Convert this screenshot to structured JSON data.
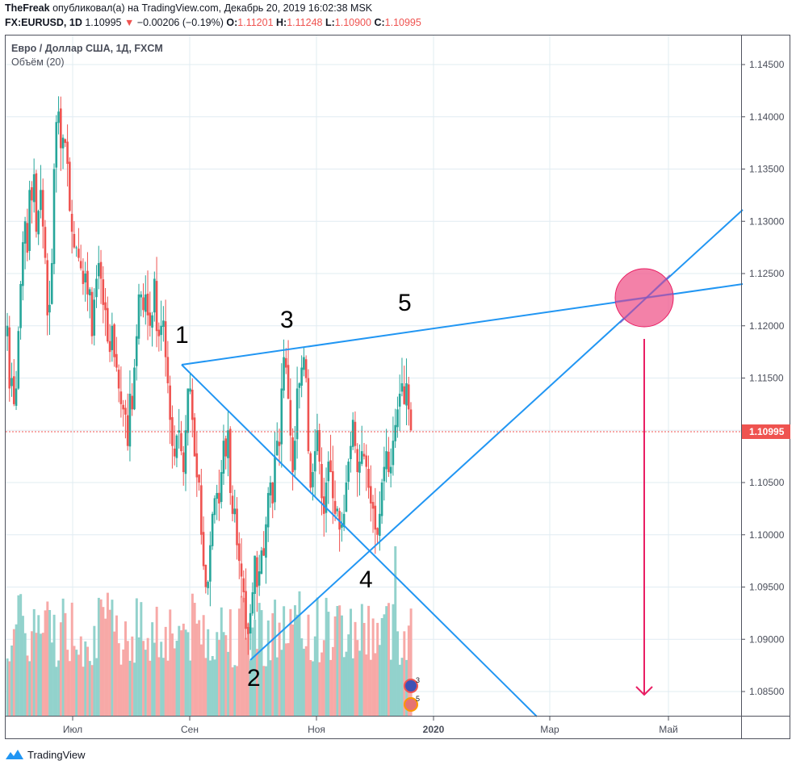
{
  "header": {
    "author": "TheFreak",
    "published_text": "опубликовал(а) на TradingView.com, Декабрь 20, 2019 16:02:38 MSK",
    "symbol": "FX:EURUSD, 1D",
    "last_price": "1.10995",
    "change_arrow": "▼",
    "change": "−0.00206 (−0.19%)",
    "o_label": "O:",
    "o_value": "1.11201",
    "h_label": "H:",
    "h_value": "1.11248",
    "l_label": "L:",
    "l_value": "1.10900",
    "c_label": "C:",
    "c_value": "1.10995"
  },
  "legend": {
    "title": "Евро / Доллар США, 1Д, FXCM",
    "volume": "Объём (20)"
  },
  "footer": {
    "brand": "TradingView"
  },
  "colors": {
    "up": "#26a69a",
    "down": "#ef5350",
    "vol_up": "#92d2cc",
    "vol_down": "#f7a9a7",
    "trendline": "#2196f3",
    "circle_fill": "#f06292",
    "circle_stroke": "#e91e63",
    "arrow": "#e91e63",
    "grid": "#e1ecf2",
    "price_line": "#ef5350"
  },
  "chart_data": {
    "type": "candlestick",
    "title": "Евро / Доллар США, 1Д, FXCM",
    "symbol": "FX:EURUSD",
    "timeframe": "1D",
    "y_ticks": [
      "1.14500",
      "1.14000",
      "1.13500",
      "1.13000",
      "1.12500",
      "1.12000",
      "1.11500",
      "1.11000",
      "1.10500",
      "1.10000",
      "1.09500",
      "1.09000",
      "1.08500"
    ],
    "x_ticks": [
      "Июл",
      "Сен",
      "Ноя",
      "2020",
      "Мар",
      "Май"
    ],
    "current_price": "1.10995",
    "ylim": [
      1.0835,
      1.1475
    ],
    "volume_indicator": "Объём (20)",
    "closes": [
      1.12,
      1.114,
      1.115,
      1.1125,
      1.114,
      1.1195,
      1.124,
      1.128,
      1.13,
      1.127,
      1.133,
      1.132,
      1.1345,
      1.129,
      1.131,
      1.133,
      1.1295,
      1.1265,
      1.121,
      1.122,
      1.126,
      1.135,
      1.1395,
      1.1405,
      1.137,
      1.138,
      1.1375,
      1.1355,
      1.131,
      1.129,
      1.1275,
      1.1275,
      1.1265,
      1.1255,
      1.124,
      1.125,
      1.123,
      1.1235,
      1.119,
      1.1225,
      1.1245,
      1.126,
      1.1245,
      1.122,
      1.1215,
      1.1185,
      1.1175,
      1.12,
      1.117,
      1.116,
      1.114,
      1.1125,
      1.112,
      1.1115,
      1.1085,
      1.1135,
      1.112,
      1.116,
      1.119,
      1.123,
      1.123,
      1.1215,
      1.123,
      1.121,
      1.12,
      1.121,
      1.1245,
      1.1195,
      1.119,
      1.12,
      1.1205,
      1.117,
      1.1145,
      1.111,
      1.1085,
      1.1075,
      1.1095,
      1.11,
      1.108,
      1.106,
      1.11,
      1.114,
      1.114,
      1.111,
      1.1075,
      1.1055,
      1.105,
      1.1,
      1.097,
      1.095,
      1.0955,
      1.099,
      1.102,
      1.1035,
      1.104,
      1.103,
      1.106,
      1.109,
      1.1075,
      1.11,
      1.104,
      1.102,
      1.1025,
      1.099,
      1.0975,
      1.096,
      1.0945,
      1.091,
      1.0905,
      1.0925,
      1.0945,
      1.098,
      1.095,
      1.0965,
      1.0985,
      1.098,
      1.101,
      1.104,
      1.105,
      1.103,
      1.1075,
      1.109,
      1.1085,
      1.114,
      1.117,
      1.116,
      1.113,
      1.1095,
      1.106,
      1.109,
      1.114,
      1.1145,
      1.116,
      1.117,
      1.115,
      1.108,
      1.1045,
      1.106,
      1.108,
      1.11,
      1.107,
      1.1035,
      1.102,
      1.105,
      1.107,
      1.106,
      1.1035,
      1.102,
      1.1025,
      1.1005,
      1.101,
      1.102,
      1.105,
      1.107,
      1.1085,
      1.111,
      1.1085,
      1.106,
      1.107,
      1.108,
      1.1075,
      1.1065,
      1.1045,
      1.103,
      1.1025,
      1.1005,
      1.1,
      1.102,
      1.105,
      1.1065,
      1.108,
      1.106,
      1.1065,
      1.109,
      1.1105,
      1.112,
      1.1135,
      1.1145,
      1.1125,
      1.1145,
      1.112,
      1.11
    ],
    "annotations": {
      "wave_labels": [
        "1",
        "2",
        "3",
        "4",
        "5"
      ],
      "trendlines": "Upper line through points 1-3-5; lower line through 2-4; diagonal from 1 through 4",
      "target_circle": "Convergence around 1.1225 at ~Apr 2020",
      "target_arrow": "Downward arrow toward ~1.0850"
    }
  }
}
